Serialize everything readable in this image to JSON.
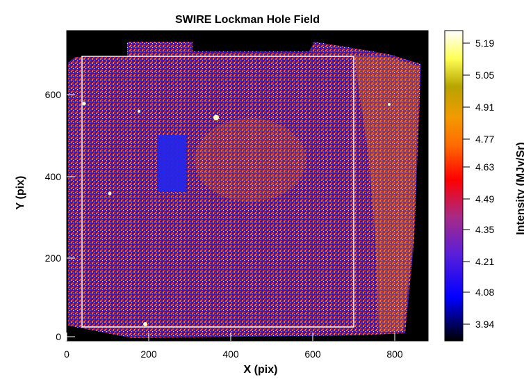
{
  "figure": {
    "title": "SWIRE Lockman Hole Field",
    "xlabel": "X (pix)",
    "ylabel": "Y (pix)",
    "colorbar_label": "Intensity (MJy/Sr)",
    "x_ticks": [
      "0",
      "200",
      "400",
      "600",
      "800"
    ],
    "y_ticks": [
      "0",
      "200",
      "400",
      "600"
    ],
    "colorbar_ticks": [
      "5.19",
      "5.05",
      "4.91",
      "4.77",
      "4.63",
      "4.49",
      "4.35",
      "4.21",
      "4.08",
      "3.94"
    ],
    "colormap": [
      "#000000",
      "#0000ff",
      "#6a1fd0",
      "#b5307a",
      "#ff0000",
      "#ff7a00",
      "#f0a000",
      "#b7a400",
      "#ffff55",
      "#ffffff"
    ],
    "x_range": [
      0,
      880
    ],
    "y_range": [
      0,
      740
    ]
  }
}
